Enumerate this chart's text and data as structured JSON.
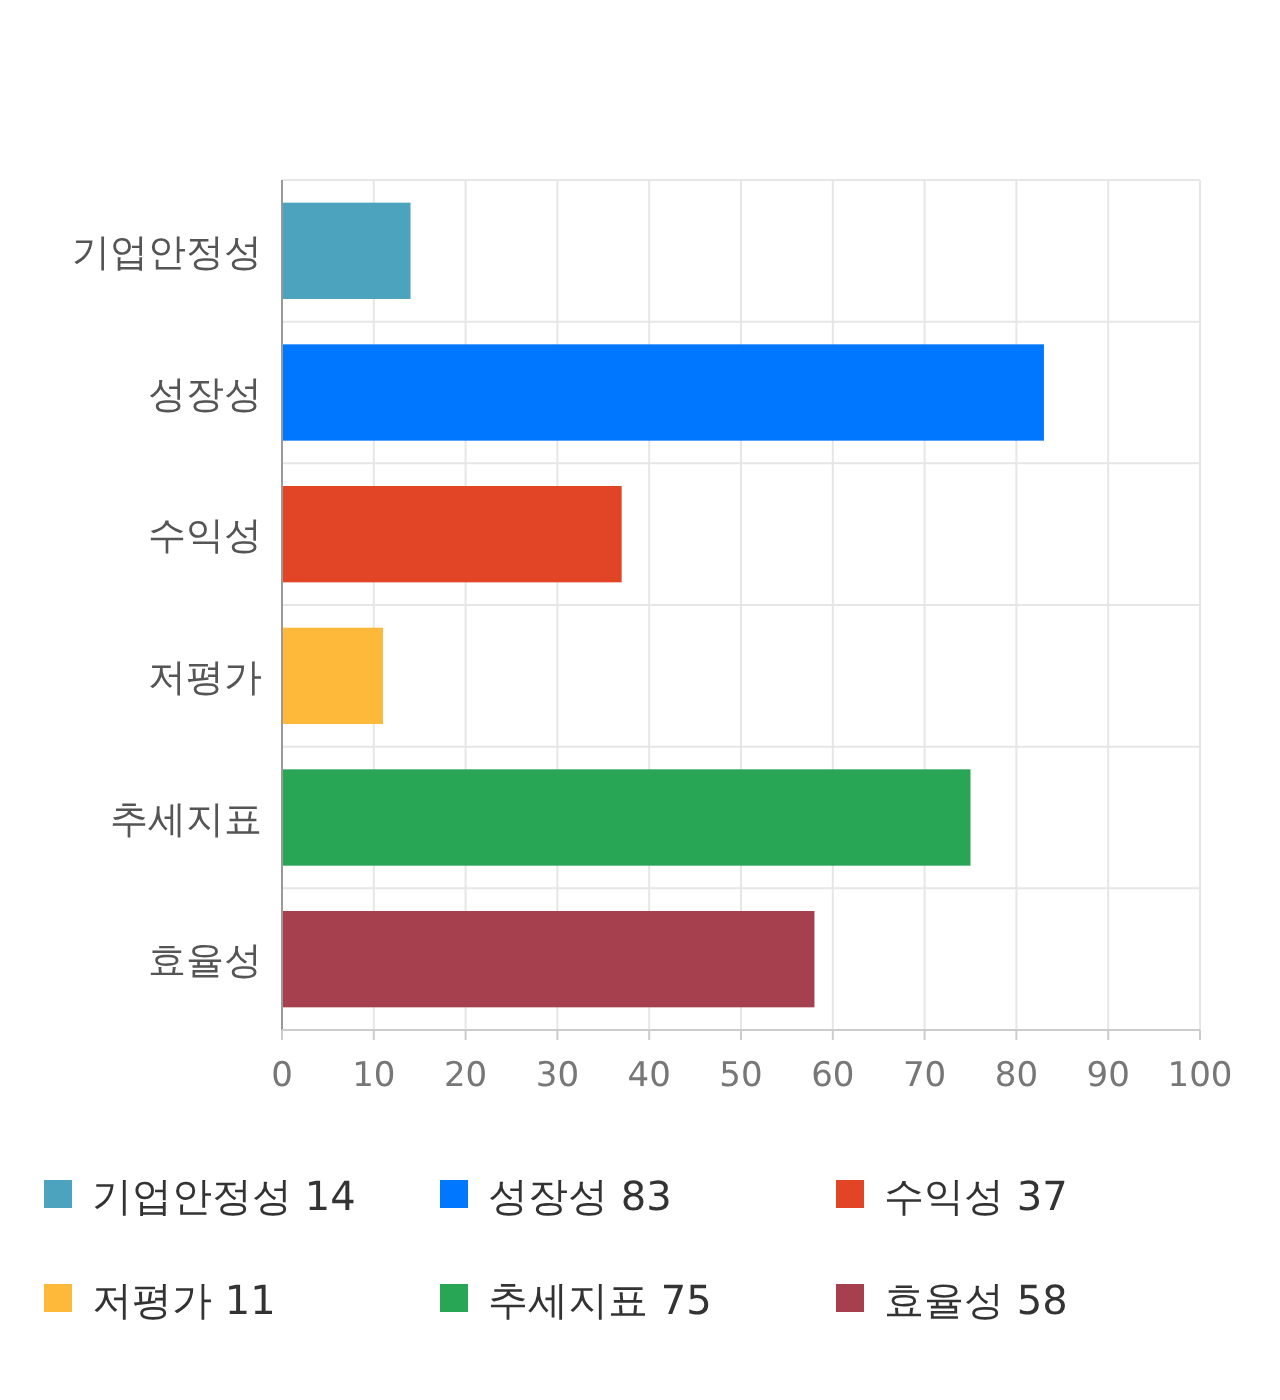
{
  "chart_data": {
    "type": "bar",
    "orientation": "horizontal",
    "categories": [
      "기업안정성",
      "성장성",
      "수익성",
      "저평가",
      "추세지표",
      "효율성"
    ],
    "series": [
      {
        "name": "기업안정성 14",
        "color": "#4ba3bd",
        "values": [
          14,
          null,
          null,
          null,
          null,
          null
        ]
      },
      {
        "name": "성장성 83",
        "color": "#0077ff",
        "values": [
          null,
          83,
          null,
          null,
          null,
          null
        ]
      },
      {
        "name": "수익성 37",
        "color": "#e24525",
        "values": [
          null,
          null,
          37,
          null,
          null,
          null
        ]
      },
      {
        "name": "저평가 11",
        "color": "#ffb93a",
        "values": [
          null,
          null,
          null,
          11,
          null,
          null
        ]
      },
      {
        "name": "추세지표 75",
        "color": "#28a555",
        "values": [
          null,
          null,
          null,
          null,
          75,
          null
        ]
      },
      {
        "name": "효율성 58",
        "color": "#a6404f",
        "values": [
          null,
          null,
          null,
          null,
          null,
          58
        ]
      }
    ],
    "xlim": [
      0,
      100
    ],
    "xticks": [
      0,
      10,
      20,
      30,
      40,
      50,
      60,
      70,
      80,
      90,
      100
    ],
    "grid": true,
    "legend": "bottom"
  }
}
